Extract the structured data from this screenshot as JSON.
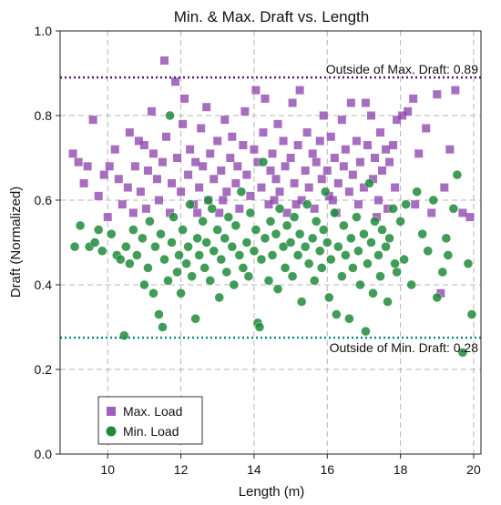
{
  "chart_data": {
    "type": "scatter",
    "title": "Min. & Max. Draft vs. Length",
    "xlabel": "Length (m)",
    "ylabel": "Draft (Normalized)",
    "xlim": [
      8.7,
      20.2
    ],
    "ylim": [
      0.0,
      1.0
    ],
    "xticks": [
      10,
      12,
      14,
      16,
      18,
      20
    ],
    "yticks": [
      0.0,
      0.2,
      0.4,
      0.6,
      0.8,
      1.0
    ],
    "xtick_labels": [
      "10",
      "12",
      "14",
      "16",
      "18",
      "20"
    ],
    "ytick_labels": [
      "0.0",
      "0.2",
      "0.4",
      "0.6",
      "0.8",
      "1.0"
    ],
    "grid": true,
    "legend_position": "lower-left",
    "series": [
      {
        "name": "Max. Load",
        "marker": "square",
        "color": "#8e44ad",
        "points": [
          [
            9.05,
            0.71
          ],
          [
            9.2,
            0.69
          ],
          [
            9.35,
            0.64
          ],
          [
            9.45,
            0.68
          ],
          [
            9.6,
            0.79
          ],
          [
            9.75,
            0.61
          ],
          [
            9.9,
            0.66
          ],
          [
            10.0,
            0.56
          ],
          [
            10.05,
            0.68
          ],
          [
            10.2,
            0.72
          ],
          [
            10.3,
            0.65
          ],
          [
            10.4,
            0.59
          ],
          [
            10.55,
            0.63
          ],
          [
            10.6,
            0.76
          ],
          [
            10.7,
            0.57
          ],
          [
            10.75,
            0.68
          ],
          [
            10.85,
            0.74
          ],
          [
            10.9,
            0.62
          ],
          [
            11.0,
            0.73
          ],
          [
            11.05,
            0.58
          ],
          [
            11.1,
            0.67
          ],
          [
            11.2,
            0.81
          ],
          [
            11.25,
            0.71
          ],
          [
            11.35,
            0.65
          ],
          [
            11.4,
            0.6
          ],
          [
            11.5,
            0.69
          ],
          [
            11.55,
            0.93
          ],
          [
            11.6,
            0.75
          ],
          [
            11.7,
            0.57
          ],
          [
            11.75,
            0.64
          ],
          [
            11.85,
            0.88
          ],
          [
            11.9,
            0.7
          ],
          [
            12.0,
            0.62
          ],
          [
            12.05,
            0.78
          ],
          [
            12.1,
            0.84
          ],
          [
            12.2,
            0.66
          ],
          [
            12.25,
            0.72
          ],
          [
            12.35,
            0.59
          ],
          [
            12.4,
            0.69
          ],
          [
            12.5,
            0.63
          ],
          [
            12.55,
            0.77
          ],
          [
            12.6,
            0.68
          ],
          [
            12.7,
            0.82
          ],
          [
            12.75,
            0.6
          ],
          [
            12.8,
            0.71
          ],
          [
            12.9,
            0.65
          ],
          [
            13.0,
            0.74
          ],
          [
            13.05,
            0.57
          ],
          [
            13.1,
            0.67
          ],
          [
            13.2,
            0.79
          ],
          [
            13.25,
            0.62
          ],
          [
            13.35,
            0.7
          ],
          [
            13.4,
            0.75
          ],
          [
            13.5,
            0.64
          ],
          [
            13.55,
            0.68
          ],
          [
            13.6,
            0.58
          ],
          [
            13.7,
            0.73
          ],
          [
            13.75,
            0.81
          ],
          [
            13.8,
            0.66
          ],
          [
            13.9,
            0.61
          ],
          [
            14.0,
            0.72
          ],
          [
            14.05,
            0.86
          ],
          [
            14.1,
            0.69
          ],
          [
            14.2,
            0.63
          ],
          [
            14.25,
            0.76
          ],
          [
            14.3,
            0.84
          ],
          [
            14.4,
            0.59
          ],
          [
            14.45,
            0.67
          ],
          [
            14.5,
            0.71
          ],
          [
            14.6,
            0.65
          ],
          [
            14.65,
            0.78
          ],
          [
            14.7,
            0.62
          ],
          [
            14.8,
            0.74
          ],
          [
            14.85,
            0.68
          ],
          [
            14.9,
            0.57
          ],
          [
            15.0,
            0.7
          ],
          [
            15.05,
            0.83
          ],
          [
            15.1,
            0.64
          ],
          [
            15.2,
            0.73
          ],
          [
            15.25,
            0.86
          ],
          [
            15.3,
            0.6
          ],
          [
            15.4,
            0.67
          ],
          [
            15.45,
            0.76
          ],
          [
            15.5,
            0.63
          ],
          [
            15.6,
            0.71
          ],
          [
            15.65,
            0.58
          ],
          [
            15.7,
            0.69
          ],
          [
            15.8,
            0.74
          ],
          [
            15.85,
            0.65
          ],
          [
            15.9,
            0.8
          ],
          [
            16.0,
            0.67
          ],
          [
            16.05,
            0.61
          ],
          [
            16.1,
            0.75
          ],
          [
            16.2,
            0.7
          ],
          [
            16.25,
            0.57
          ],
          [
            16.3,
            0.64
          ],
          [
            16.4,
            0.79
          ],
          [
            16.45,
            0.68
          ],
          [
            16.5,
            0.72
          ],
          [
            16.6,
            0.62
          ],
          [
            16.65,
            0.83
          ],
          [
            16.7,
            0.66
          ],
          [
            16.8,
            0.74
          ],
          [
            16.85,
            0.59
          ],
          [
            16.9,
            0.69
          ],
          [
            17.0,
            0.63
          ],
          [
            17.05,
            0.83
          ],
          [
            17.1,
            0.73
          ],
          [
            17.2,
            0.8
          ],
          [
            17.25,
            0.65
          ],
          [
            17.3,
            0.7
          ],
          [
            17.4,
            0.6
          ],
          [
            17.45,
            0.76
          ],
          [
            17.5,
            0.67
          ],
          [
            17.6,
            0.72
          ],
          [
            17.65,
            0.58
          ],
          [
            17.7,
            0.69
          ],
          [
            17.8,
            0.73
          ],
          [
            17.85,
            0.63
          ],
          [
            17.9,
            0.79
          ],
          [
            18.05,
            0.8
          ],
          [
            18.2,
            0.81
          ],
          [
            18.35,
            0.84
          ],
          [
            18.5,
            0.71
          ],
          [
            18.7,
            0.77
          ],
          [
            18.85,
            0.57
          ],
          [
            19.0,
            0.85
          ],
          [
            19.1,
            0.38
          ],
          [
            19.2,
            0.63
          ],
          [
            19.35,
            0.72
          ],
          [
            19.5,
            0.86
          ],
          [
            19.7,
            0.57
          ],
          [
            19.9,
            0.56
          ],
          [
            18.4,
            0.59
          ],
          [
            13.15,
            0.6
          ],
          [
            15.15,
            0.59
          ],
          [
            16.15,
            0.6
          ],
          [
            12.45,
            0.57
          ],
          [
            14.55,
            0.6
          ],
          [
            17.35,
            0.56
          ]
        ]
      },
      {
        "name": "Min. Load",
        "marker": "circle",
        "color": "#1e8b3a",
        "points": [
          [
            9.1,
            0.49
          ],
          [
            9.25,
            0.54
          ],
          [
            9.5,
            0.49
          ],
          [
            9.65,
            0.5
          ],
          [
            9.85,
            0.48
          ],
          [
            10.1,
            0.52
          ],
          [
            10.25,
            0.47
          ],
          [
            10.45,
            0.28
          ],
          [
            10.5,
            0.49
          ],
          [
            10.6,
            0.45
          ],
          [
            10.7,
            0.53
          ],
          [
            10.8,
            0.47
          ],
          [
            10.95,
            0.51
          ],
          [
            11.0,
            0.4
          ],
          [
            11.1,
            0.44
          ],
          [
            11.15,
            0.55
          ],
          [
            11.25,
            0.38
          ],
          [
            11.3,
            0.49
          ],
          [
            11.4,
            0.33
          ],
          [
            11.45,
            0.52
          ],
          [
            11.5,
            0.3
          ],
          [
            11.55,
            0.46
          ],
          [
            11.65,
            0.41
          ],
          [
            11.7,
            0.8
          ],
          [
            11.75,
            0.5
          ],
          [
            11.8,
            0.56
          ],
          [
            11.9,
            0.43
          ],
          [
            11.95,
            0.47
          ],
          [
            12.0,
            0.38
          ],
          [
            12.05,
            0.53
          ],
          [
            12.15,
            0.45
          ],
          [
            12.2,
            0.49
          ],
          [
            12.25,
            0.59
          ],
          [
            12.3,
            0.42
          ],
          [
            12.4,
            0.32
          ],
          [
            12.45,
            0.51
          ],
          [
            12.5,
            0.47
          ],
          [
            12.6,
            0.55
          ],
          [
            12.65,
            0.44
          ],
          [
            12.7,
            0.5
          ],
          [
            12.8,
            0.41
          ],
          [
            12.85,
            0.58
          ],
          [
            12.9,
            0.48
          ],
          [
            13.0,
            0.53
          ],
          [
            13.05,
            0.37
          ],
          [
            13.1,
            0.46
          ],
          [
            13.2,
            0.51
          ],
          [
            13.25,
            0.43
          ],
          [
            13.3,
            0.56
          ],
          [
            13.4,
            0.49
          ],
          [
            13.45,
            0.4
          ],
          [
            13.5,
            0.54
          ],
          [
            13.6,
            0.47
          ],
          [
            13.65,
            0.62
          ],
          [
            13.7,
            0.44
          ],
          [
            13.8,
            0.5
          ],
          [
            13.85,
            0.42
          ],
          [
            13.9,
            0.57
          ],
          [
            14.0,
            0.48
          ],
          [
            14.05,
            0.53
          ],
          [
            14.1,
            0.31
          ],
          [
            14.2,
            0.46
          ],
          [
            14.25,
            0.69
          ],
          [
            14.3,
            0.51
          ],
          [
            14.4,
            0.41
          ],
          [
            14.45,
            0.55
          ],
          [
            14.5,
            0.47
          ],
          [
            14.6,
            0.52
          ],
          [
            14.65,
            0.39
          ],
          [
            14.7,
            0.58
          ],
          [
            14.8,
            0.49
          ],
          [
            14.85,
            0.44
          ],
          [
            14.9,
            0.54
          ],
          [
            15.0,
            0.5
          ],
          [
            15.05,
            0.42
          ],
          [
            15.1,
            0.56
          ],
          [
            15.2,
            0.47
          ],
          [
            15.25,
            0.52
          ],
          [
            15.3,
            0.36
          ],
          [
            15.4,
            0.49
          ],
          [
            15.45,
            0.59
          ],
          [
            15.5,
            0.45
          ],
          [
            15.6,
            0.51
          ],
          [
            15.65,
            0.41
          ],
          [
            15.7,
            0.55
          ],
          [
            15.8,
            0.48
          ],
          [
            15.85,
            0.44
          ],
          [
            15.9,
            0.53
          ],
          [
            16.0,
            0.5
          ],
          [
            16.05,
            0.37
          ],
          [
            16.1,
            0.46
          ],
          [
            16.2,
            0.57
          ],
          [
            16.25,
            0.33
          ],
          [
            16.3,
            0.49
          ],
          [
            16.4,
            0.42
          ],
          [
            16.45,
            0.54
          ],
          [
            16.5,
            0.47
          ],
          [
            16.6,
            0.32
          ],
          [
            16.65,
            0.51
          ],
          [
            16.7,
            0.44
          ],
          [
            16.8,
            0.56
          ],
          [
            16.85,
            0.48
          ],
          [
            16.9,
            0.4
          ],
          [
            17.0,
            0.52
          ],
          [
            17.05,
            0.29
          ],
          [
            17.1,
            0.45
          ],
          [
            17.2,
            0.5
          ],
          [
            17.25,
            0.38
          ],
          [
            17.3,
            0.55
          ],
          [
            17.4,
            0.47
          ],
          [
            17.45,
            0.42
          ],
          [
            17.5,
            0.53
          ],
          [
            17.6,
            0.49
          ],
          [
            17.65,
            0.36
          ],
          [
            17.7,
            0.51
          ],
          [
            17.8,
            0.58
          ],
          [
            17.85,
            0.45
          ],
          [
            17.9,
            0.43
          ],
          [
            18.0,
            0.55
          ],
          [
            18.15,
            0.59
          ],
          [
            18.3,
            0.4
          ],
          [
            18.45,
            0.62
          ],
          [
            18.6,
            0.52
          ],
          [
            18.75,
            0.48
          ],
          [
            18.9,
            0.6
          ],
          [
            19.0,
            0.37
          ],
          [
            19.15,
            0.43
          ],
          [
            19.3,
            0.47
          ],
          [
            19.45,
            0.58
          ],
          [
            19.55,
            0.66
          ],
          [
            19.7,
            0.24
          ],
          [
            19.85,
            0.45
          ],
          [
            19.95,
            0.33
          ],
          [
            9.75,
            0.53
          ],
          [
            10.35,
            0.46
          ],
          [
            12.75,
            0.6
          ],
          [
            14.15,
            0.3
          ],
          [
            15.95,
            0.62
          ],
          [
            17.15,
            0.64
          ],
          [
            18.1,
            0.46
          ],
          [
            19.25,
            0.51
          ]
        ]
      }
    ],
    "reference_lines": [
      {
        "orientation": "horizontal",
        "y": 0.89,
        "color": "#5b1a7a",
        "style": "dotted",
        "label": "Outside of Max. Draft: 0.89",
        "label_position": "above-right"
      },
      {
        "orientation": "horizontal",
        "y": 0.275,
        "color": "#0f8a7e",
        "style": "dotted",
        "label": "Outside of Min. Draft: 0.28",
        "label_position": "below-right"
      }
    ]
  }
}
